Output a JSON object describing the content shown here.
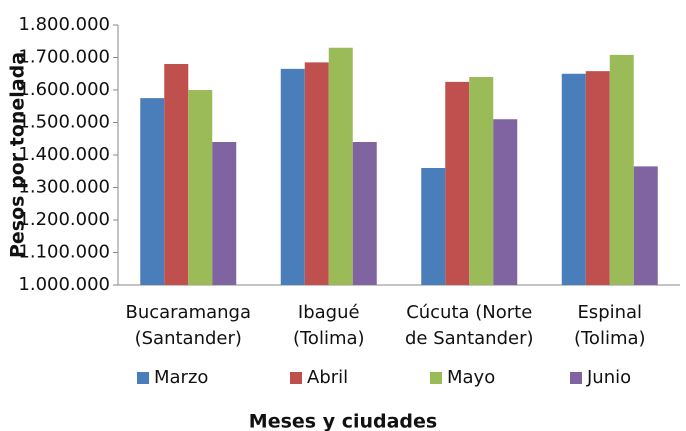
{
  "chart_data": {
    "type": "bar",
    "x_label": "Meses y ciudades",
    "y_label": "Pesos por tonelada",
    "categories": [
      [
        "Bucaramanga",
        "(Santander)"
      ],
      [
        "Ibagué",
        "(Tolima)"
      ],
      [
        "Cúcuta (Norte",
        "de Santander)"
      ],
      [
        "Espinal",
        "(Tolima)"
      ]
    ],
    "series": [
      {
        "name": "Marzo",
        "color": "#4a7ebb",
        "values": [
          1575000,
          1665000,
          1360000,
          1650000
        ]
      },
      {
        "name": "Abril",
        "color": "#c0504d",
        "values": [
          1680000,
          1685000,
          1625000,
          1658000
        ]
      },
      {
        "name": "Mayo",
        "color": "#9bbb59",
        "values": [
          1600000,
          1730000,
          1640000,
          1708000
        ]
      },
      {
        "name": "Junio",
        "color": "#8064a2",
        "values": [
          1440000,
          1440000,
          1510000,
          1365000
        ]
      }
    ],
    "ylim": [
      1000000,
      1800000
    ],
    "yticks": [
      {
        "value": 1000000,
        "label": "1.000.000"
      },
      {
        "value": 1100000,
        "label": "1.100.000"
      },
      {
        "value": 1200000,
        "label": "1.200.000"
      },
      {
        "value": 1300000,
        "label": "1.300.000"
      },
      {
        "value": 1400000,
        "label": "1.400.000"
      },
      {
        "value": 1500000,
        "label": "1.500.000"
      },
      {
        "value": 1600000,
        "label": "1.600.000"
      },
      {
        "value": 1700000,
        "label": "1.700.000"
      },
      {
        "value": 1800000,
        "label": "1.800.000"
      }
    ],
    "legend": "bottom",
    "grid": false
  }
}
